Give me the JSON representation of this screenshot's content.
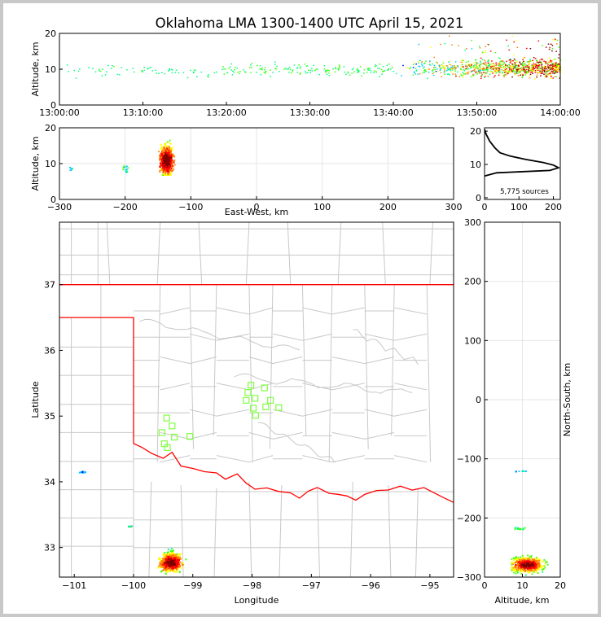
{
  "title": "Oklahoma LMA 1300-1400 UTC April 15, 2021",
  "colors": {
    "border_red": "#ff0000",
    "county_gray": "#c8c8c8",
    "station_green": "#80ff40",
    "density_scale": [
      "#0000ff",
      "#00c8ff",
      "#00ff80",
      "#40ff00",
      "#ffff00",
      "#ff8000",
      "#ff0000",
      "#800000"
    ]
  },
  "chart_data": [
    {
      "id": "time-altitude",
      "type": "scatter",
      "ylabel": "Altitude, km",
      "xlim": [
        "13:00:00",
        "14:00:00"
      ],
      "ylim": [
        0,
        20
      ],
      "xticks": [
        "13:00:00",
        "13:10:00",
        "13:20:00",
        "13:30:00",
        "13:40:00",
        "13:50:00",
        "14:00:00"
      ],
      "yticks": [
        "0",
        "10",
        "20"
      ],
      "description_series": [
        {
          "t_range_min": [
            0,
            20
          ],
          "alt_range_km": [
            8,
            14
          ],
          "density": "sparse"
        },
        {
          "t_range_min": [
            20,
            40
          ],
          "alt_range_km": [
            8,
            13
          ],
          "density": "moderate"
        },
        {
          "t_range_min": [
            40,
            60
          ],
          "alt_range_km": [
            7,
            20
          ],
          "density": "dense"
        }
      ]
    },
    {
      "id": "ew-altitude",
      "type": "heatmap",
      "xlabel": "East-West, km",
      "ylabel": "Altitude, km",
      "xlim": [
        -300,
        300
      ],
      "ylim": [
        0,
        20
      ],
      "xticks": [
        "−300",
        "−200",
        "−100",
        "0",
        "100",
        "200",
        "300"
      ],
      "yticks": [
        "0",
        "10",
        "20"
      ],
      "clusters": [
        {
          "x_km": [
            -160,
            -115
          ],
          "alt_km": [
            7,
            20
          ],
          "core_x_km": -138,
          "core_alt_km": 11
        },
        {
          "x_km": [
            -205,
            -195
          ],
          "alt_km": [
            7.5,
            9.5
          ]
        },
        {
          "x_km": [
            -290,
            -280
          ],
          "alt_km": [
            8,
            9
          ]
        }
      ]
    },
    {
      "id": "altitude-histogram",
      "type": "line",
      "xlim": [
        0,
        220
      ],
      "ylim": [
        0,
        20
      ],
      "xticks": [
        "0",
        "100",
        "200"
      ],
      "yticks": [
        "0",
        "10",
        "20"
      ],
      "annotation": "5,775 sources",
      "profile": [
        {
          "alt": 6.5,
          "count": 0
        },
        {
          "alt": 7.5,
          "count": 35
        },
        {
          "alt": 8.2,
          "count": 190
        },
        {
          "alt": 9.0,
          "count": 215
        },
        {
          "alt": 9.8,
          "count": 200
        },
        {
          "alt": 10.6,
          "count": 170
        },
        {
          "alt": 11.5,
          "count": 120
        },
        {
          "alt": 12.5,
          "count": 75
        },
        {
          "alt": 13.5,
          "count": 45
        },
        {
          "alt": 15.0,
          "count": 30
        },
        {
          "alt": 17.0,
          "count": 15
        },
        {
          "alt": 19.0,
          "count": 5
        },
        {
          "alt": 20.5,
          "count": 0
        }
      ]
    },
    {
      "id": "plan-view",
      "type": "heatmap",
      "xlabel": "Longitude",
      "ylabel": "Latitude",
      "xlim": [
        -101.25,
        -94.6
      ],
      "ylim": [
        32.55,
        37.95
      ],
      "xticks": [
        "−101",
        "−100",
        "−99",
        "−98",
        "−97",
        "−96",
        "−95"
      ],
      "yticks": [
        "33",
        "34",
        "35",
        "36",
        "37"
      ],
      "stations": [
        [
          -98.02,
          35.47
        ],
        [
          -98.07,
          35.36
        ],
        [
          -97.79,
          35.43
        ],
        [
          -97.95,
          35.27
        ],
        [
          -98.1,
          35.24
        ],
        [
          -97.69,
          35.24
        ],
        [
          -97.77,
          35.14
        ],
        [
          -97.55,
          35.13
        ],
        [
          -97.98,
          35.12
        ],
        [
          -97.94,
          35.01
        ],
        [
          -99.44,
          34.97
        ],
        [
          -99.35,
          34.85
        ],
        [
          -99.52,
          34.75
        ],
        [
          -99.31,
          34.68
        ],
        [
          -99.05,
          34.69
        ],
        [
          -99.48,
          34.58
        ],
        [
          -99.43,
          34.52
        ]
      ],
      "clusters": [
        {
          "lon": [
            -99.75,
            -99.1
          ],
          "lat": [
            32.6,
            33.1
          ],
          "core_lon": -99.38,
          "core_lat": 32.78
        },
        {
          "lon": [
            -101.0,
            -100.82
          ],
          "lat": [
            34.15,
            34.18
          ]
        },
        {
          "lon": [
            -100.17,
            -100.03
          ],
          "lat": [
            33.3,
            33.36
          ]
        }
      ]
    },
    {
      "id": "altitude-ns",
      "type": "heatmap",
      "xlabel": "Altitude, km",
      "ylabel": "North-South, km",
      "xlim": [
        0,
        20
      ],
      "ylim": [
        -300,
        300
      ],
      "xticks": [
        "0",
        "10",
        "20"
      ],
      "yticks": [
        "−300",
        "−200",
        "−100",
        "0",
        "100",
        "200",
        "300"
      ],
      "clusters": [
        {
          "alt_km": [
            7,
            20
          ],
          "y_km": [
            -295,
            -240
          ],
          "core_alt_km": 11,
          "core_y_km": -278
        },
        {
          "alt_km": [
            7.5,
            10.5
          ],
          "y_km": [
            -222,
            -212
          ]
        },
        {
          "alt_km": [
            8,
            11
          ],
          "y_km": [
            -122,
            -117
          ]
        }
      ]
    }
  ]
}
